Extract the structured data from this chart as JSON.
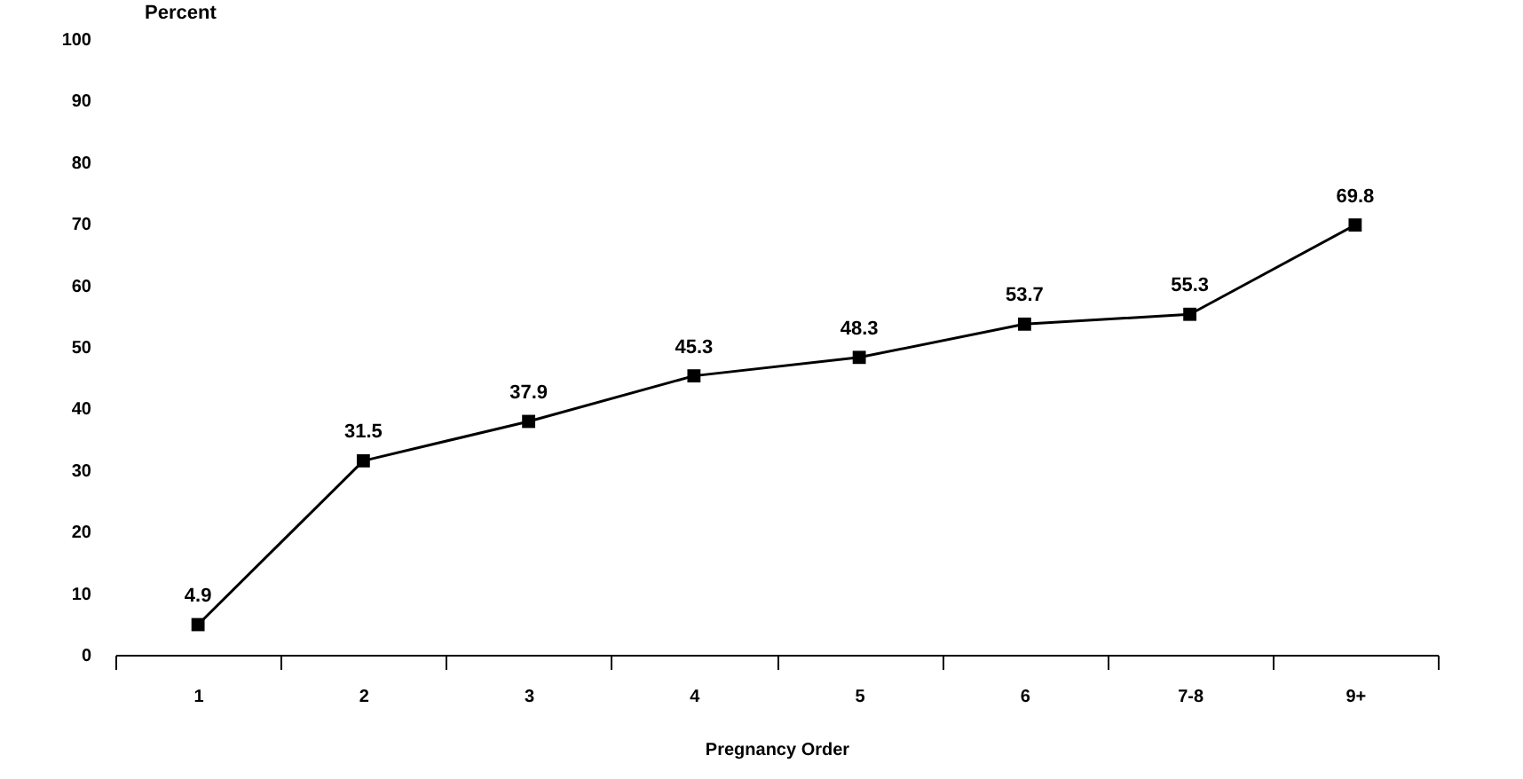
{
  "chart_data": {
    "type": "line",
    "xlabel": "Pregnancy Order",
    "ylabel": "Percent",
    "categories": [
      "1",
      "2",
      "3",
      "4",
      "5",
      "6",
      "7-8",
      "9+"
    ],
    "series": [
      {
        "color": "#000000",
        "values": [
          4.9,
          31.5,
          37.9,
          45.3,
          48.3,
          53.7,
          55.3,
          69.8
        ]
      }
    ],
    "ylim": [
      0,
      100
    ],
    "yticks": [
      0,
      10,
      20,
      30,
      40,
      50,
      60,
      70,
      80,
      90,
      100
    ],
    "grid": false,
    "legend": false,
    "marker": "square",
    "line_style": "solid",
    "data_labels": true
  }
}
